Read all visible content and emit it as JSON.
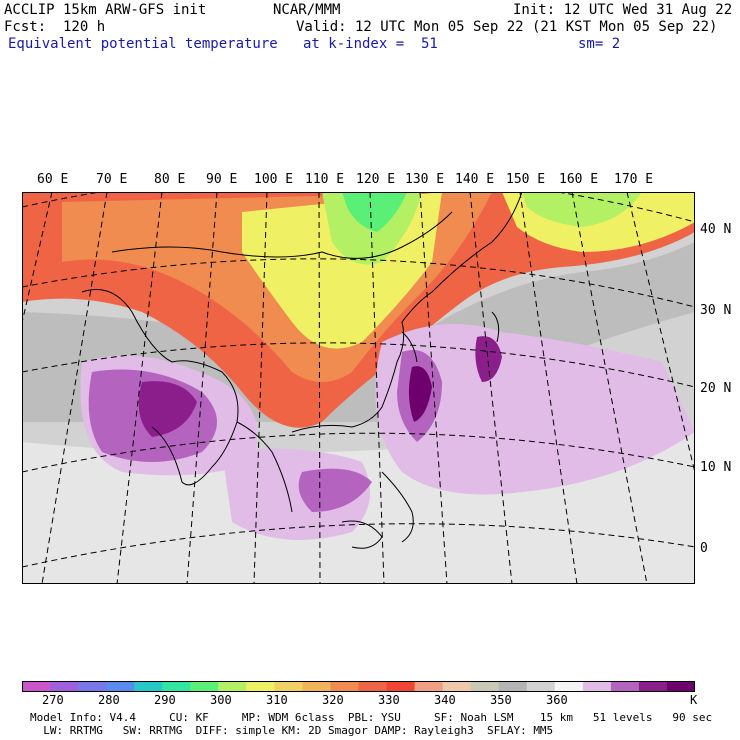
{
  "header": {
    "model": "ACCLIP 15km ARW-GFS init",
    "fcst": "Fcst:  120 h",
    "product": "Equivalent potential temperature",
    "center": "NCAR/MMM",
    "init": "Init: 12 UTC Wed 31 Aug 22",
    "valid": "Valid: 12 UTC Mon 05 Sep 22 (21 KST Mon 05 Sep 22)",
    "level": "at k-index =  51",
    "smooth": "sm= 2"
  },
  "map": {
    "lon_labels": [
      "60 E",
      "70 E",
      "80 E",
      "90 E",
      "100 E",
      "110 E",
      "120 E",
      "130 E",
      "140 E",
      "150 E",
      "160 E",
      "170 E"
    ],
    "lat_labels": [
      "40 N",
      "30 N",
      "20 N",
      "10 N",
      "0"
    ]
  },
  "colorbar": {
    "unit": "K",
    "tick_labels": [
      "270",
      "280",
      "290",
      "300",
      "310",
      "320",
      "330",
      "340",
      "350",
      "360"
    ],
    "colors": [
      "#cc55cc",
      "#a060dc",
      "#7878e6",
      "#5a8cf0",
      "#28c8c8",
      "#32e6a0",
      "#5af078",
      "#b4f064",
      "#f0f064",
      "#f0d264",
      "#f0b45a",
      "#f08c50",
      "#f06446",
      "#f04632",
      "#f0a082",
      "#f0c8aa",
      "#c8c8b4",
      "#b4b4b4",
      "#d2d2d2",
      "#f5f5f5",
      "#e0bce6",
      "#b464be",
      "#8c1e8c",
      "#6e006e"
    ]
  },
  "footer": {
    "line1": "Model Info: V4.4     CU: KF     MP: WDM 6class  PBL: YSU     SF: Noah LSM    15 km   51 levels   90 sec",
    "line2": "  LW: RRTMG   SW: RRTMG  DIFF: simple KM: 2D Smagor DAMP: Rayleigh3  SFLAY: MM5"
  }
}
